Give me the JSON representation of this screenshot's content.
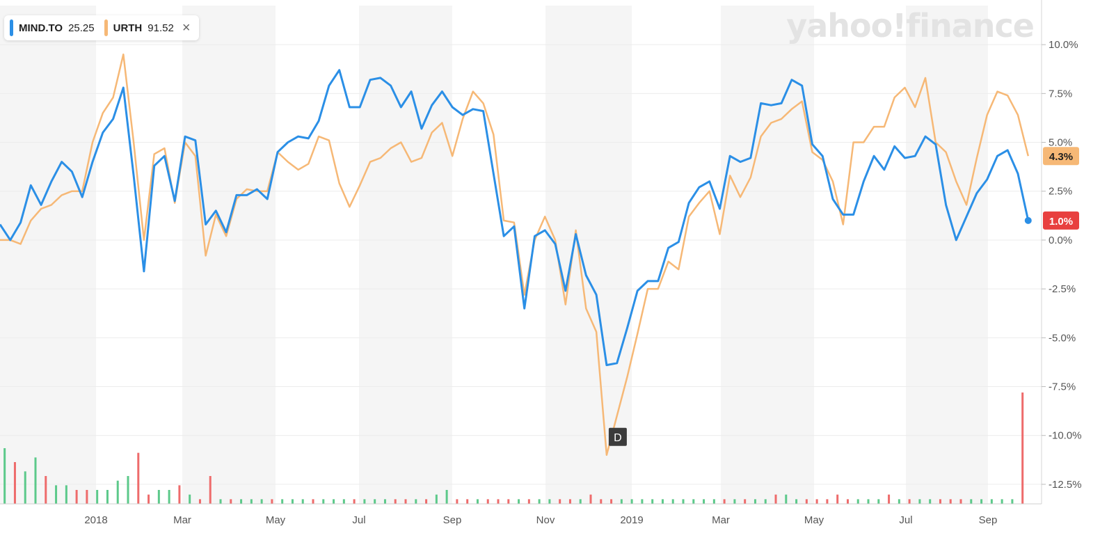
{
  "brand": "yahoo!finance",
  "legend": {
    "items": [
      {
        "symbol": "MIND.TO",
        "value": "25.25",
        "color": "#2b8fe6"
      },
      {
        "symbol": "URTH",
        "value": "91.52",
        "color": "#f6b876"
      }
    ],
    "close_label": "×"
  },
  "chart_data": {
    "type": "line",
    "x_tick_labels": [
      "2018",
      "Mar",
      "May",
      "Jul",
      "Sep",
      "Nov",
      "2019",
      "Mar",
      "May",
      "Jul",
      "Sep"
    ],
    "y_tick_labels": [
      "10.0%",
      "7.5%",
      "5.0%",
      "2.5%",
      "0.0%",
      "-2.5%",
      "-5.0%",
      "-7.5%",
      "-10.0%",
      "-12.5%"
    ],
    "ylim": [
      -13.5,
      12
    ],
    "series": [
      {
        "name": "MIND.TO",
        "color": "#2b8fe6",
        "last_label": "1.0%",
        "last_label_color": "#e8403f",
        "values": [
          0.8,
          0,
          0.9,
          2.8,
          1.8,
          3.0,
          4.0,
          3.5,
          2.2,
          4.0,
          5.5,
          6.2,
          7.8,
          3.3,
          -1.6,
          3.8,
          4.3,
          2.0,
          5.3,
          5.1,
          0.8,
          1.5,
          0.4,
          2.3,
          2.3,
          2.6,
          2.1,
          4.5,
          5.0,
          5.3,
          5.2,
          6.1,
          7.9,
          8.7,
          6.8,
          6.8,
          8.2,
          8.3,
          7.9,
          6.8,
          7.6,
          5.7,
          6.9,
          7.6,
          6.8,
          6.4,
          6.7,
          6.6,
          3.4,
          0.2,
          0.7,
          -3.5,
          0.2,
          0.5,
          -0.2,
          -2.6,
          0.3,
          -1.8,
          -2.8,
          -6.4,
          -6.3,
          -4.5,
          -2.6,
          -2.1,
          -2.1,
          -0.4,
          -0.1,
          1.9,
          2.7,
          3.0,
          1.6,
          4.3,
          4.0,
          4.2,
          7.0,
          6.9,
          7.0,
          8.2,
          7.9,
          4.9,
          4.3,
          2.1,
          1.3,
          1.3,
          3.0,
          4.3,
          3.6,
          4.8,
          4.2,
          4.3,
          5.3,
          4.9,
          1.8,
          0.0,
          1.2,
          2.4,
          3.1,
          4.3,
          4.6,
          3.4,
          1.0
        ]
      },
      {
        "name": "URTH",
        "color": "#f6b876",
        "last_label": "4.3%",
        "last_label_color": "#f6b876",
        "values": [
          0.0,
          0.0,
          -0.2,
          1.0,
          1.6,
          1.8,
          2.3,
          2.5,
          2.5,
          5.0,
          6.5,
          7.3,
          9.5,
          5.0,
          0.0,
          4.4,
          4.7,
          1.9,
          5.0,
          4.3,
          -0.8,
          1.3,
          0.2,
          2.1,
          2.6,
          2.5,
          2.5,
          4.5,
          4.0,
          3.6,
          3.9,
          5.3,
          5.1,
          2.9,
          1.7,
          2.8,
          4.0,
          4.2,
          4.7,
          5.0,
          4.0,
          4.2,
          5.5,
          6.0,
          4.3,
          6.2,
          7.6,
          7.0,
          5.4,
          1.0,
          0.9,
          -2.8,
          0.0,
          1.2,
          0.0,
          -3.3,
          0.5,
          -3.5,
          -4.7,
          -11.0,
          -9.0,
          -7.0,
          -4.8,
          -2.5,
          -2.5,
          -1.1,
          -1.5,
          1.2,
          1.9,
          2.5,
          0.3,
          3.3,
          2.2,
          3.2,
          5.3,
          6.0,
          6.2,
          6.7,
          7.1,
          4.5,
          4.1,
          3.0,
          0.8,
          5.0,
          5.0,
          5.8,
          5.8,
          7.3,
          7.8,
          6.8,
          8.3,
          5.0,
          4.5,
          3.0,
          1.8,
          4.2,
          6.4,
          7.6,
          7.4,
          6.4,
          4.3
        ]
      }
    ],
    "volume": {
      "values": [
        12,
        9,
        7,
        10,
        6,
        4,
        4,
        3,
        3,
        3,
        3,
        5,
        6,
        11,
        2,
        3,
        3,
        4,
        2,
        1,
        6,
        1,
        1,
        1,
        1,
        1,
        1,
        1,
        1,
        1,
        1,
        1,
        1,
        1,
        1,
        1,
        1,
        1,
        1,
        1,
        1,
        1,
        2,
        3,
        1,
        1,
        1,
        1,
        1,
        1,
        1,
        1,
        1,
        1,
        1,
        1,
        1,
        2,
        1,
        1,
        1,
        1,
        1,
        1,
        1,
        1,
        1,
        1,
        1,
        1,
        1,
        1,
        1,
        1,
        1,
        2,
        2,
        1,
        1,
        1,
        1,
        2,
        1,
        1,
        1,
        1,
        2,
        1,
        1,
        1,
        1,
        1,
        1,
        1,
        1,
        1,
        1,
        1,
        1,
        24
      ],
      "up_color": "#5cc98a",
      "down_color": "#ee6b6b"
    },
    "annotation": {
      "label": "D",
      "series": "URTH",
      "index": 59
    },
    "grid": true,
    "legend_position": "top-left"
  }
}
